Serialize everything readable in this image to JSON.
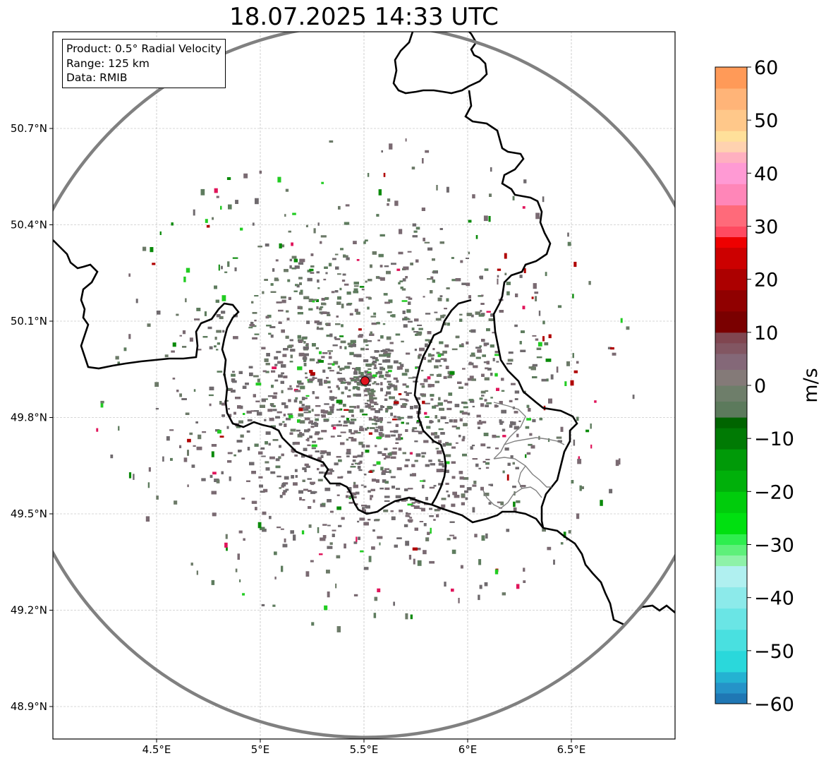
{
  "title": "18.07.2025 14:33 UTC",
  "info_box": {
    "product": "Product: 0.5° Radial Velocity",
    "range": "Range: 125 km",
    "data_source": "Data: RMIB"
  },
  "map": {
    "lon_range": [
      4.0,
      7.0
    ],
    "lat_range": [
      48.8,
      50.98
    ],
    "x_ticks": [
      4.5,
      5.0,
      5.5,
      6.0,
      6.5
    ],
    "x_tick_labels": [
      "4.5°E",
      "5°E",
      "5.5°E",
      "6°E",
      "6.5°E"
    ],
    "y_ticks": [
      48.9,
      49.2,
      49.5,
      49.8,
      50.1,
      50.4,
      50.7
    ],
    "y_tick_labels": [
      "48.9°N",
      "49.2°N",
      "49.5°N",
      "49.8°N",
      "50.1°N",
      "50.4°N",
      "50.7°N"
    ],
    "radar_site": {
      "lon": 5.505,
      "lat": 49.914,
      "color": "#e0141e"
    },
    "range_ring_color": "#808080",
    "border_color": "#000000",
    "grid": true,
    "echo_colors": {
      "dominant_near_zero": [
        "#7a6a72",
        "#6f6a6e",
        "#5e7c5e",
        "#6c7a68"
      ],
      "inbound": [
        "#0a8a0a",
        "#22cc22"
      ],
      "outbound": [
        "#b00000",
        "#e0145a"
      ]
    }
  },
  "colorbar": {
    "label": "m/s",
    "min": -60,
    "max": 60,
    "ticks": [
      60,
      50,
      40,
      30,
      20,
      10,
      0,
      -10,
      -20,
      -30,
      -40,
      -50,
      -60
    ],
    "tick_labels": [
      "60",
      "50",
      "40",
      "30",
      "20",
      "10",
      "0",
      "−10",
      "−20",
      "−30",
      "−40",
      "−50",
      "−60"
    ],
    "segments": [
      {
        "from": -60,
        "to": -58,
        "color": "#1f77b4"
      },
      {
        "from": -58,
        "to": -56,
        "color": "#2593c8"
      },
      {
        "from": -56,
        "to": -54,
        "color": "#24b2d2"
      },
      {
        "from": -54,
        "to": -50,
        "color": "#2ad8db"
      },
      {
        "from": -50,
        "to": -46,
        "color": "#49e0e0"
      },
      {
        "from": -46,
        "to": -42,
        "color": "#6ae5e5"
      },
      {
        "from": -42,
        "to": -38,
        "color": "#8ceaea"
      },
      {
        "from": -38,
        "to": -34,
        "color": "#b0f0f0"
      },
      {
        "from": -34,
        "to": -32,
        "color": "#8ef2a8"
      },
      {
        "from": -32,
        "to": -30,
        "color": "#5ef07a"
      },
      {
        "from": -30,
        "to": -28,
        "color": "#2eee4e"
      },
      {
        "from": -28,
        "to": -24,
        "color": "#00e010"
      },
      {
        "from": -24,
        "to": -20,
        "color": "#00cc0c"
      },
      {
        "from": -20,
        "to": -16,
        "color": "#00b00a"
      },
      {
        "from": -16,
        "to": -12,
        "color": "#009a08"
      },
      {
        "from": -12,
        "to": -8,
        "color": "#007a04"
      },
      {
        "from": -8,
        "to": -6,
        "color": "#006400"
      },
      {
        "from": -6,
        "to": -3,
        "color": "#5c7a5c"
      },
      {
        "from": -3,
        "to": 0,
        "color": "#6e7e6a"
      },
      {
        "from": 0,
        "to": 3,
        "color": "#847a78"
      },
      {
        "from": 3,
        "to": 6,
        "color": "#846878"
      },
      {
        "from": 6,
        "to": 8,
        "color": "#825662"
      },
      {
        "from": 8,
        "to": 10,
        "color": "#804650"
      },
      {
        "from": 10,
        "to": 14,
        "color": "#7a0000"
      },
      {
        "from": 14,
        "to": 18,
        "color": "#900000"
      },
      {
        "from": 18,
        "to": 22,
        "color": "#ac0000"
      },
      {
        "from": 22,
        "to": 26,
        "color": "#cc0000"
      },
      {
        "from": 26,
        "to": 28,
        "color": "#ee0000"
      },
      {
        "from": 28,
        "to": 30,
        "color": "#ff4a60"
      },
      {
        "from": 30,
        "to": 34,
        "color": "#ff6a7a"
      },
      {
        "from": 34,
        "to": 38,
        "color": "#ff86b8"
      },
      {
        "from": 38,
        "to": 42,
        "color": "#ff9ad4"
      },
      {
        "from": 42,
        "to": 44,
        "color": "#ffb0c0"
      },
      {
        "from": 44,
        "to": 46,
        "color": "#ffd2b0"
      },
      {
        "from": 46,
        "to": 48,
        "color": "#ffe09a"
      },
      {
        "from": 48,
        "to": 52,
        "color": "#ffc88a"
      },
      {
        "from": 52,
        "to": 56,
        "color": "#ffb478"
      },
      {
        "from": 56,
        "to": 60,
        "color": "#ff9a58"
      }
    ]
  }
}
